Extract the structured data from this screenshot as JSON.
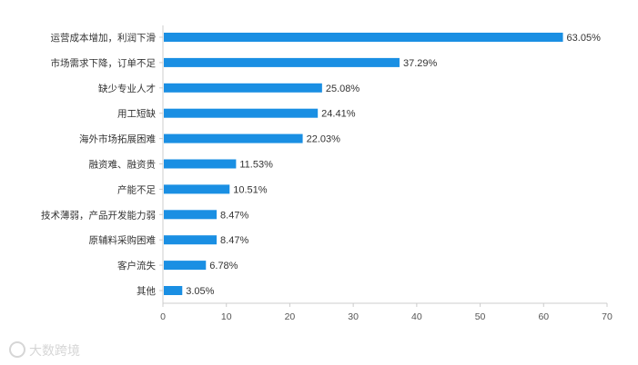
{
  "chart_data": {
    "type": "bar",
    "orientation": "horizontal",
    "categories": [
      "运营成本增加，利润下滑",
      "市场需求下降，订单不足",
      "缺少专业人才",
      "用工短缺",
      "海外市场拓展困难",
      "融资难、融资贵",
      "产能不足",
      "技术薄弱，产品开发能力弱",
      "原辅料采购困难",
      "客户流失",
      "其他"
    ],
    "values": [
      63.05,
      37.29,
      25.08,
      24.41,
      22.03,
      11.53,
      10.51,
      8.47,
      8.47,
      6.78,
      3.05
    ],
    "value_labels": [
      "63.05%",
      "37.29%",
      "25.08%",
      "24.41%",
      "22.03%",
      "11.53%",
      "10.51%",
      "8.47%",
      "8.47%",
      "6.78%",
      "3.05%"
    ],
    "x_ticks": [
      "0",
      "10",
      "20",
      "30",
      "40",
      "50",
      "60",
      "70"
    ],
    "xlim": [
      0,
      70
    ],
    "title": "",
    "xlabel": "",
    "ylabel": "",
    "grid": false,
    "legend": "none",
    "bar_color": "#1a8fe3"
  },
  "watermark": {
    "text": "大数跨境"
  }
}
